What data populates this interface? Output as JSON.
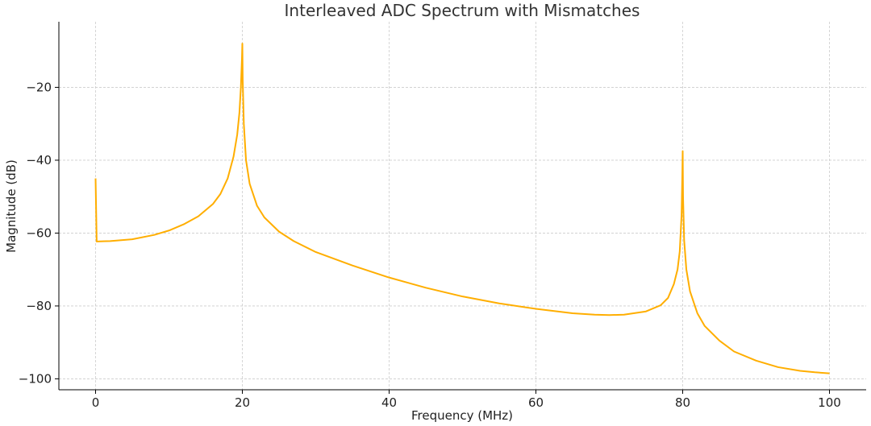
{
  "chart_data": {
    "type": "line",
    "title": "Interleaved ADC Spectrum with Mismatches",
    "xlabel": "Frequency (MHz)",
    "ylabel": "Magnitude (dB)",
    "xlim": [
      -5,
      105
    ],
    "ylim": [
      -103,
      -2
    ],
    "xticks": [
      0,
      20,
      40,
      60,
      80,
      100
    ],
    "yticks": [
      -100,
      -80,
      -60,
      -40,
      -20
    ],
    "xtick_labels": [
      "0",
      "20",
      "40",
      "60",
      "80",
      "100"
    ],
    "ytick_labels": [
      "−100",
      "−80",
      "−60",
      "−40",
      "−20"
    ],
    "grid": true,
    "color": "#ffae00",
    "series": [
      {
        "x": [
          0,
          0.15,
          2,
          5,
          8,
          10,
          12,
          14,
          16,
          17,
          18,
          18.8,
          19.3,
          19.6,
          19.8,
          19.95,
          20,
          20.05,
          20.2,
          20.5,
          21,
          22,
          23,
          25,
          27,
          30,
          35,
          40,
          45,
          50,
          55,
          60,
          65,
          68,
          70,
          72,
          75,
          77,
          78,
          78.8,
          79.3,
          79.6,
          79.85,
          79.95,
          80,
          80.05,
          80.2,
          80.5,
          81,
          82,
          83,
          85,
          87,
          90,
          93,
          96,
          98,
          100
        ],
        "y": [
          -45,
          -62.3,
          -62.2,
          -61.7,
          -60.5,
          -59.3,
          -57.6,
          -55.4,
          -52,
          -49.3,
          -45,
          -39,
          -33,
          -27,
          -20,
          -12,
          -8,
          -18,
          -30,
          -40,
          -46.5,
          -52.5,
          -55.7,
          -59.6,
          -62.2,
          -65.2,
          -68.9,
          -72.2,
          -75,
          -77.4,
          -79.3,
          -80.8,
          -82,
          -82.4,
          -82.5,
          -82.4,
          -81.5,
          -79.8,
          -77.8,
          -74,
          -70,
          -65,
          -55,
          -44,
          -37.5,
          -50,
          -62,
          -70,
          -76,
          -82,
          -85.5,
          -89.5,
          -92.5,
          -95,
          -96.8,
          -97.8,
          -98.2,
          -98.5
        ]
      }
    ]
  }
}
